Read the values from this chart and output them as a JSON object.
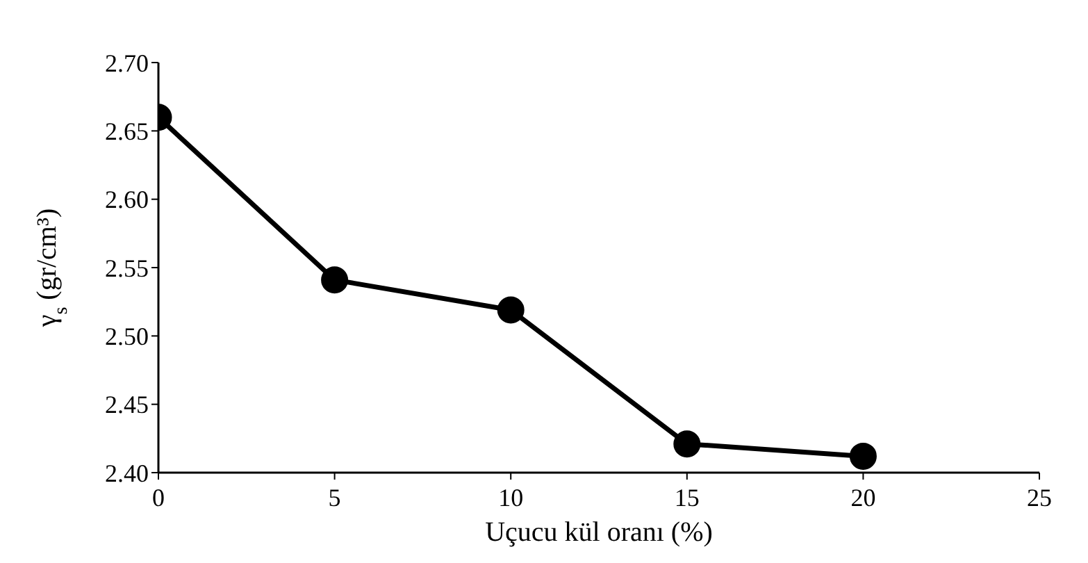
{
  "chart_data": {
    "type": "line",
    "xlabel": "Uçucu kül oranı (%)",
    "ylabel": "γ$_{s}$ (gr/cm³)",
    "x": [
      0,
      5,
      10,
      15,
      20
    ],
    "series": [
      {
        "color": "#000000",
        "values": [
          2.66,
          2.541,
          2.519,
          2.421,
          2.412
        ]
      }
    ],
    "xlim": [
      0,
      25
    ],
    "xticks": [
      0,
      5,
      10,
      15,
      20,
      25
    ],
    "ylim": [
      2.4,
      2.7
    ],
    "yticks": [
      {
        "value": 2.4,
        "label": "2.40"
      },
      {
        "value": 2.45,
        "label": "2.45"
      },
      {
        "value": 2.5,
        "label": "2.50"
      },
      {
        "value": 2.55,
        "label": "2.55"
      },
      {
        "value": 2.6,
        "label": "2.60"
      },
      {
        "value": 2.65,
        "label": "2.65"
      },
      {
        "value": 2.7,
        "label": "2.70"
      }
    ],
    "grid": false,
    "legend": false,
    "marker": "circle",
    "line_style": "solid"
  }
}
